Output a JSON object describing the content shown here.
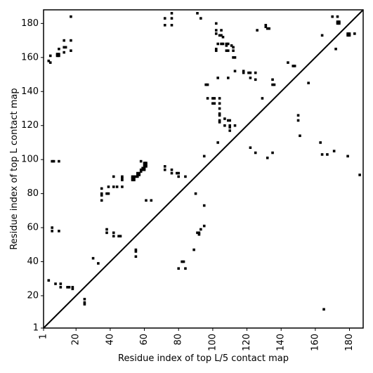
{
  "chart_data": {
    "type": "scatter",
    "xlabel": "Residue index of top L/5 contact map",
    "ylabel": "Residue index of top L contact map",
    "xlim": [
      1,
      188
    ],
    "ylim": [
      1,
      188
    ],
    "x_ticks": [
      1,
      20,
      40,
      60,
      80,
      100,
      120,
      140,
      160,
      180
    ],
    "y_ticks": [
      1,
      20,
      40,
      60,
      80,
      100,
      120,
      140,
      160,
      180
    ],
    "diagonal": true,
    "marker_color": "#000000",
    "series": [
      {
        "marker": "square",
        "points": [
          [
            4,
            29
          ],
          [
            4,
            158
          ],
          [
            5,
            157
          ],
          [
            5,
            161
          ],
          [
            6,
            99
          ],
          [
            7,
            99
          ],
          [
            6,
            60
          ],
          [
            6,
            58
          ],
          [
            8,
            27
          ],
          [
            9,
            161
          ],
          [
            10,
            161
          ],
          [
            9,
            162
          ],
          [
            10,
            162
          ],
          [
            10,
            165
          ],
          [
            10,
            99
          ],
          [
            10,
            58
          ],
          [
            11,
            27
          ],
          [
            11,
            25
          ],
          [
            13,
            163
          ],
          [
            13,
            166
          ],
          [
            14,
            166
          ],
          [
            13,
            170
          ],
          [
            15,
            25
          ],
          [
            16,
            25
          ],
          [
            17,
            164
          ],
          [
            17,
            170
          ],
          [
            17,
            184
          ],
          [
            18,
            25
          ],
          [
            18,
            24
          ],
          [
            25,
            18
          ],
          [
            25,
            16
          ],
          [
            25,
            15
          ],
          [
            30,
            42
          ],
          [
            33,
            39
          ],
          [
            35,
            76
          ],
          [
            35,
            79
          ],
          [
            35,
            80
          ],
          [
            35,
            83
          ],
          [
            38,
            80
          ],
          [
            39,
            80
          ],
          [
            38,
            57
          ],
          [
            38,
            59
          ],
          [
            39,
            84
          ],
          [
            42,
            90
          ],
          [
            42,
            84
          ],
          [
            42,
            55
          ],
          [
            42,
            57
          ],
          [
            44,
            84
          ],
          [
            45,
            55
          ],
          [
            46,
            55
          ],
          [
            47,
            84
          ],
          [
            47,
            88
          ],
          [
            47,
            89
          ],
          [
            47,
            90
          ],
          [
            53,
            88
          ],
          [
            53,
            89
          ],
          [
            53,
            90
          ],
          [
            54,
            88
          ],
          [
            54,
            89
          ],
          [
            54,
            90
          ],
          [
            55,
            90
          ],
          [
            56,
            90
          ],
          [
            56,
            91
          ],
          [
            56,
            92
          ],
          [
            57,
            91
          ],
          [
            57,
            92
          ],
          [
            58,
            94
          ],
          [
            58,
            93
          ],
          [
            58,
            99
          ],
          [
            59,
            94
          ],
          [
            59,
            95
          ],
          [
            60,
            94
          ],
          [
            60,
            95
          ],
          [
            60,
            96
          ],
          [
            60,
            97
          ],
          [
            61,
            96
          ],
          [
            61,
            97
          ],
          [
            61,
            98
          ],
          [
            55,
            47
          ],
          [
            55,
            46
          ],
          [
            55,
            43
          ],
          [
            60,
            98
          ],
          [
            61,
            76
          ],
          [
            64,
            76
          ],
          [
            72,
            179
          ],
          [
            72,
            183
          ],
          [
            72,
            96
          ],
          [
            72,
            94
          ],
          [
            76,
            179
          ],
          [
            76,
            183
          ],
          [
            76,
            186
          ],
          [
            76,
            94
          ],
          [
            76,
            92
          ],
          [
            79,
            92
          ],
          [
            80,
            92
          ],
          [
            80,
            90
          ],
          [
            80,
            36
          ],
          [
            82,
            40
          ],
          [
            83,
            40
          ],
          [
            84,
            36
          ],
          [
            84,
            90
          ],
          [
            89,
            47
          ],
          [
            90,
            80
          ],
          [
            91,
            186
          ],
          [
            91,
            57
          ],
          [
            92,
            57
          ],
          [
            92,
            56
          ],
          [
            93,
            183
          ],
          [
            93,
            59
          ],
          [
            95,
            61
          ],
          [
            95,
            73
          ],
          [
            95,
            102
          ],
          [
            96,
            144
          ],
          [
            97,
            144
          ],
          [
            97,
            136
          ],
          [
            100,
            136
          ],
          [
            101,
            136
          ],
          [
            100,
            133
          ],
          [
            101,
            133
          ],
          [
            102,
            180
          ],
          [
            102,
            176
          ],
          [
            102,
            174
          ],
          [
            102,
            165
          ],
          [
            102,
            164
          ],
          [
            103,
            168
          ],
          [
            103,
            110
          ],
          [
            103,
            148
          ],
          [
            104,
            173
          ],
          [
            104,
            136
          ],
          [
            104,
            133
          ],
          [
            104,
            130
          ],
          [
            104,
            127
          ],
          [
            104,
            126
          ],
          [
            104,
            123
          ],
          [
            104,
            122
          ],
          [
            105,
            176
          ],
          [
            105,
            173
          ],
          [
            105,
            168
          ],
          [
            106,
            172
          ],
          [
            106,
            168
          ],
          [
            107,
            120
          ],
          [
            107,
            124
          ],
          [
            108,
            168
          ],
          [
            108,
            167
          ],
          [
            109,
            168
          ],
          [
            108,
            164
          ],
          [
            109,
            164
          ],
          [
            109,
            148
          ],
          [
            109,
            123
          ],
          [
            110,
            123
          ],
          [
            110,
            120
          ],
          [
            110,
            119
          ],
          [
            110,
            117
          ],
          [
            111,
            167
          ],
          [
            112,
            166
          ],
          [
            112,
            164
          ],
          [
            112,
            160
          ],
          [
            113,
            160
          ],
          [
            113,
            152
          ],
          [
            113,
            120
          ],
          [
            118,
            152
          ],
          [
            118,
            151
          ],
          [
            121,
            151
          ],
          [
            122,
            151
          ],
          [
            122,
            148
          ],
          [
            122,
            107
          ],
          [
            125,
            151
          ],
          [
            125,
            147
          ],
          [
            125,
            104
          ],
          [
            126,
            176
          ],
          [
            129,
            136
          ],
          [
            131,
            179
          ],
          [
            131,
            178
          ],
          [
            132,
            177
          ],
          [
            133,
            177
          ],
          [
            132,
            101
          ],
          [
            135,
            147
          ],
          [
            135,
            144
          ],
          [
            136,
            144
          ],
          [
            135,
            104
          ],
          [
            144,
            157
          ],
          [
            147,
            155
          ],
          [
            148,
            155
          ],
          [
            150,
            126
          ],
          [
            150,
            123
          ],
          [
            151,
            114
          ],
          [
            156,
            145
          ],
          [
            163,
            110
          ],
          [
            164,
            173
          ],
          [
            164,
            103
          ],
          [
            165,
            12
          ],
          [
            167,
            103
          ],
          [
            170,
            184
          ],
          [
            171,
            105
          ],
          [
            172,
            165
          ],
          [
            173,
            184
          ],
          [
            173,
            181
          ],
          [
            174,
            181
          ],
          [
            173,
            180
          ],
          [
            174,
            180
          ],
          [
            179,
            174
          ],
          [
            180,
            174
          ],
          [
            179,
            173
          ],
          [
            180,
            173
          ],
          [
            179,
            102
          ],
          [
            183,
            174
          ],
          [
            186,
            91
          ]
        ]
      }
    ]
  }
}
